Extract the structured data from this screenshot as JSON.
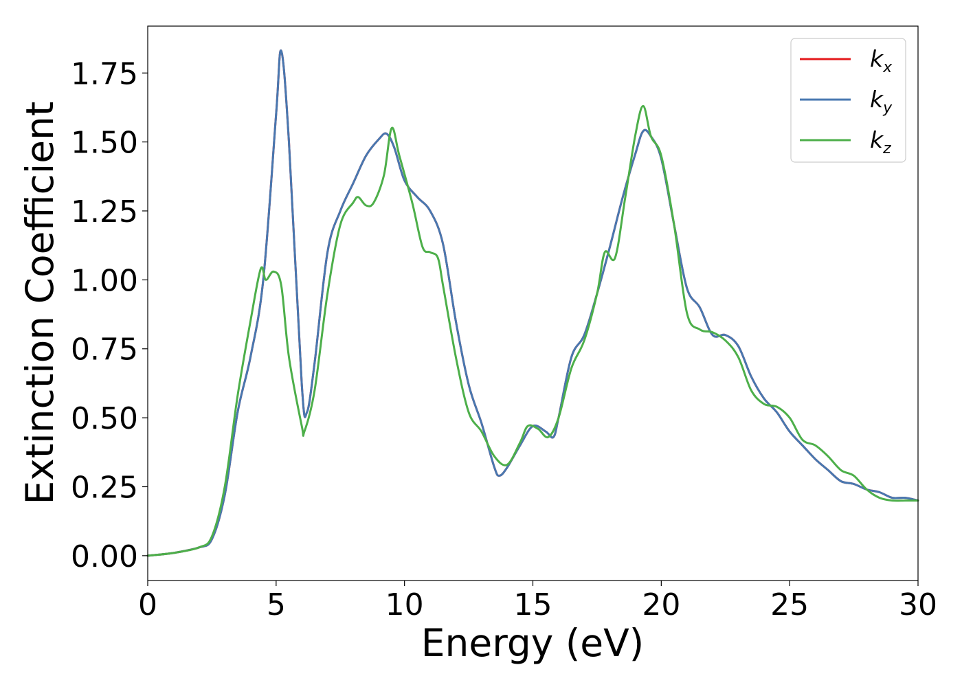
{
  "chart_data": {
    "type": "line",
    "xlabel": "Energy (eV)",
    "ylabel": "Extinction Coefficient",
    "xlim": [
      0,
      30
    ],
    "ylim": [
      -0.09,
      1.92
    ],
    "xticks": [
      "0",
      "5",
      "10",
      "15",
      "20",
      "25",
      "30"
    ],
    "yticks": [
      "0.00",
      "0.25",
      "0.50",
      "0.75",
      "1.00",
      "1.25",
      "1.50",
      "1.75"
    ],
    "grid": false,
    "legend_position": "top-right",
    "series": [
      {
        "name": "k",
        "subscript": "x",
        "color": "#e41a1c",
        "x": [
          0,
          1,
          2,
          2.5,
          3,
          3.5,
          4,
          4.5,
          5,
          5.2,
          5.5,
          6,
          6.2,
          6.5,
          7,
          7.5,
          8,
          8.5,
          9,
          9.3,
          9.6,
          10,
          10.5,
          11,
          11.5,
          12,
          12.5,
          13,
          13.5,
          13.7,
          14,
          14.5,
          15,
          15.5,
          15.8,
          16,
          16.5,
          17,
          17.5,
          18,
          18.5,
          19,
          19.3,
          19.6,
          20,
          20.5,
          21,
          21.5,
          22,
          22.5,
          23,
          23.5,
          24,
          24.5,
          25,
          25.5,
          26,
          26.5,
          27,
          27.5,
          28,
          28.5,
          29,
          29.5,
          30
        ],
        "values": [
          0.0,
          0.01,
          0.03,
          0.06,
          0.22,
          0.52,
          0.72,
          1.0,
          1.6,
          1.83,
          1.5,
          0.62,
          0.52,
          0.7,
          1.1,
          1.25,
          1.35,
          1.45,
          1.51,
          1.53,
          1.48,
          1.36,
          1.3,
          1.25,
          1.13,
          0.85,
          0.62,
          0.48,
          0.32,
          0.29,
          0.32,
          0.4,
          0.47,
          0.45,
          0.43,
          0.5,
          0.72,
          0.8,
          0.95,
          1.12,
          1.3,
          1.46,
          1.54,
          1.52,
          1.44,
          1.2,
          0.97,
          0.9,
          0.8,
          0.8,
          0.76,
          0.65,
          0.57,
          0.52,
          0.45,
          0.4,
          0.35,
          0.31,
          0.27,
          0.26,
          0.24,
          0.23,
          0.21,
          0.21,
          0.2
        ]
      },
      {
        "name": "k",
        "subscript": "y",
        "color": "#4878b0",
        "x": [
          0,
          1,
          2,
          2.5,
          3,
          3.5,
          4,
          4.5,
          5,
          5.2,
          5.5,
          6,
          6.2,
          6.5,
          7,
          7.5,
          8,
          8.5,
          9,
          9.3,
          9.6,
          10,
          10.5,
          11,
          11.5,
          12,
          12.5,
          13,
          13.5,
          13.7,
          14,
          14.5,
          15,
          15.5,
          15.8,
          16,
          16.5,
          17,
          17.5,
          18,
          18.5,
          19,
          19.3,
          19.6,
          20,
          20.5,
          21,
          21.5,
          22,
          22.5,
          23,
          23.5,
          24,
          24.5,
          25,
          25.5,
          26,
          26.5,
          27,
          27.5,
          28,
          28.5,
          29,
          29.5,
          30
        ],
        "values": [
          0.0,
          0.01,
          0.03,
          0.06,
          0.22,
          0.52,
          0.72,
          1.0,
          1.6,
          1.83,
          1.5,
          0.62,
          0.52,
          0.7,
          1.1,
          1.25,
          1.35,
          1.45,
          1.51,
          1.53,
          1.48,
          1.36,
          1.3,
          1.25,
          1.13,
          0.85,
          0.62,
          0.48,
          0.32,
          0.29,
          0.32,
          0.4,
          0.47,
          0.45,
          0.43,
          0.5,
          0.72,
          0.8,
          0.95,
          1.12,
          1.3,
          1.46,
          1.54,
          1.52,
          1.44,
          1.2,
          0.97,
          0.9,
          0.8,
          0.8,
          0.76,
          0.65,
          0.57,
          0.52,
          0.45,
          0.4,
          0.35,
          0.31,
          0.27,
          0.26,
          0.24,
          0.23,
          0.21,
          0.21,
          0.2
        ]
      },
      {
        "name": "k",
        "subscript": "z",
        "color": "#4daf4a",
        "x": [
          0,
          1,
          2,
          2.5,
          3,
          3.5,
          4,
          4.4,
          4.6,
          4.9,
          5.2,
          5.5,
          6,
          6.1,
          6.5,
          7,
          7.5,
          8,
          8.2,
          8.5,
          8.8,
          9.2,
          9.5,
          9.8,
          10.3,
          10.7,
          11,
          11.3,
          11.5,
          12,
          12.5,
          13,
          13.5,
          14,
          14.5,
          14.8,
          15.2,
          15.6,
          16,
          16.5,
          17,
          17.5,
          17.8,
          18.2,
          18.6,
          19,
          19.3,
          19.6,
          20,
          20.5,
          21,
          21.5,
          22,
          22.5,
          23,
          23.5,
          24,
          24.5,
          25,
          25.5,
          26,
          26.5,
          27,
          27.5,
          28,
          28.5,
          29,
          29.5,
          30
        ],
        "values": [
          0.0,
          0.01,
          0.03,
          0.07,
          0.25,
          0.58,
          0.85,
          1.04,
          1.0,
          1.03,
          0.98,
          0.72,
          0.47,
          0.45,
          0.6,
          0.95,
          1.2,
          1.28,
          1.3,
          1.27,
          1.28,
          1.38,
          1.55,
          1.45,
          1.28,
          1.12,
          1.1,
          1.08,
          0.98,
          0.72,
          0.52,
          0.45,
          0.36,
          0.33,
          0.41,
          0.47,
          0.46,
          0.43,
          0.5,
          0.68,
          0.78,
          0.95,
          1.1,
          1.08,
          1.3,
          1.53,
          1.63,
          1.52,
          1.45,
          1.2,
          0.88,
          0.82,
          0.81,
          0.78,
          0.72,
          0.6,
          0.55,
          0.54,
          0.5,
          0.42,
          0.4,
          0.36,
          0.31,
          0.29,
          0.24,
          0.21,
          0.2,
          0.2,
          0.2
        ]
      }
    ]
  }
}
